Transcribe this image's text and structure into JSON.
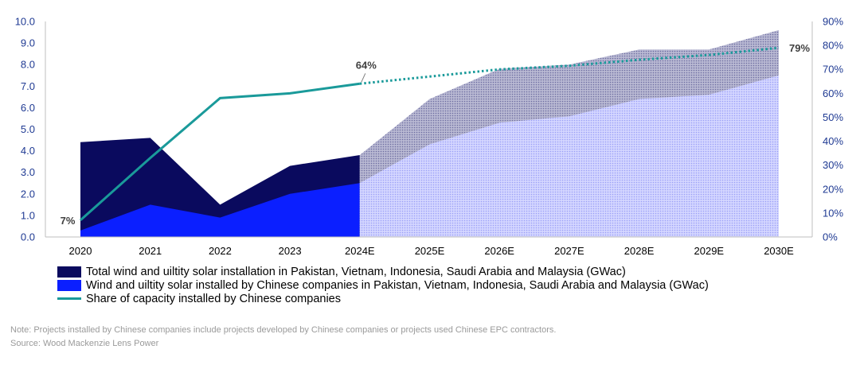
{
  "chart_data": {
    "type": "area",
    "categories": [
      "2020",
      "2021",
      "2022",
      "2023",
      "2024E",
      "2025E",
      "2026E",
      "2027E",
      "2028E",
      "2029E",
      "2030E"
    ],
    "forecast_start_index": 4,
    "series": [
      {
        "name": "Total wind and uiltity solar installation in Pakistan, Vietnam, Indonesia, Saudi Arabia and Malaysia (GWac)",
        "axis": "left",
        "kind": "area",
        "values": [
          4.4,
          4.6,
          1.5,
          3.3,
          3.8,
          6.4,
          7.8,
          8.0,
          8.7,
          8.7,
          9.6
        ]
      },
      {
        "name": "Wind and uiltity solar installed by Chinese companies in Pakistan, Vietnam, Indonesia, Saudi Arabia and Malaysia (GWac)",
        "axis": "right",
        "kind": "area",
        "values": [
          0.3,
          1.5,
          0.9,
          2.0,
          2.5,
          4.3,
          5.3,
          5.6,
          6.4,
          6.6,
          7.5
        ]
      },
      {
        "name": "Share of capacity installed by Chinese companies",
        "axis": "right",
        "kind": "line",
        "unit": "%",
        "values": [
          7,
          33,
          58,
          60,
          64,
          67,
          70,
          71.5,
          74,
          76,
          79
        ]
      }
    ],
    "y_left": {
      "min": 0,
      "max": 10,
      "ticks": [
        "0.0",
        "1.0",
        "2.0",
        "3.0",
        "4.0",
        "5.0",
        "6.0",
        "7.0",
        "8.0",
        "9.0",
        "10.0"
      ]
    },
    "y_right": {
      "min": 0,
      "max": 90,
      "ticks": [
        "0%",
        "10%",
        "20%",
        "30%",
        "40%",
        "50%",
        "60%",
        "70%",
        "80%",
        "90%"
      ]
    },
    "annotations": [
      {
        "index": 0,
        "label": "7%"
      },
      {
        "index": 4,
        "label": "64%"
      },
      {
        "index": 10,
        "label": "79%"
      }
    ],
    "colors": {
      "total": "#0a0a5e",
      "chinese": "#0b1fff",
      "share": "#1a9a9a",
      "forecast_light": "#c7c9ff",
      "forecast_dark": "#a9a9c8"
    }
  },
  "legend": [
    {
      "label": "Total wind and uiltity solar installation in Pakistan, Vietnam, Indonesia, Saudi Arabia and Malaysia (GWac)"
    },
    {
      "label": "Wind and uiltity solar installed by Chinese companies in Pakistan, Vietnam, Indonesia, Saudi Arabia and Malaysia (GWac)"
    },
    {
      "label": "Share of capacity installed by Chinese companies"
    }
  ],
  "footnote": {
    "note": "Note: Projects installed by Chinese companies include projects developed by Chinese companies or projects used Chinese EPC contractors.",
    "source": "Source: Wood Mackenzie Lens Power"
  }
}
